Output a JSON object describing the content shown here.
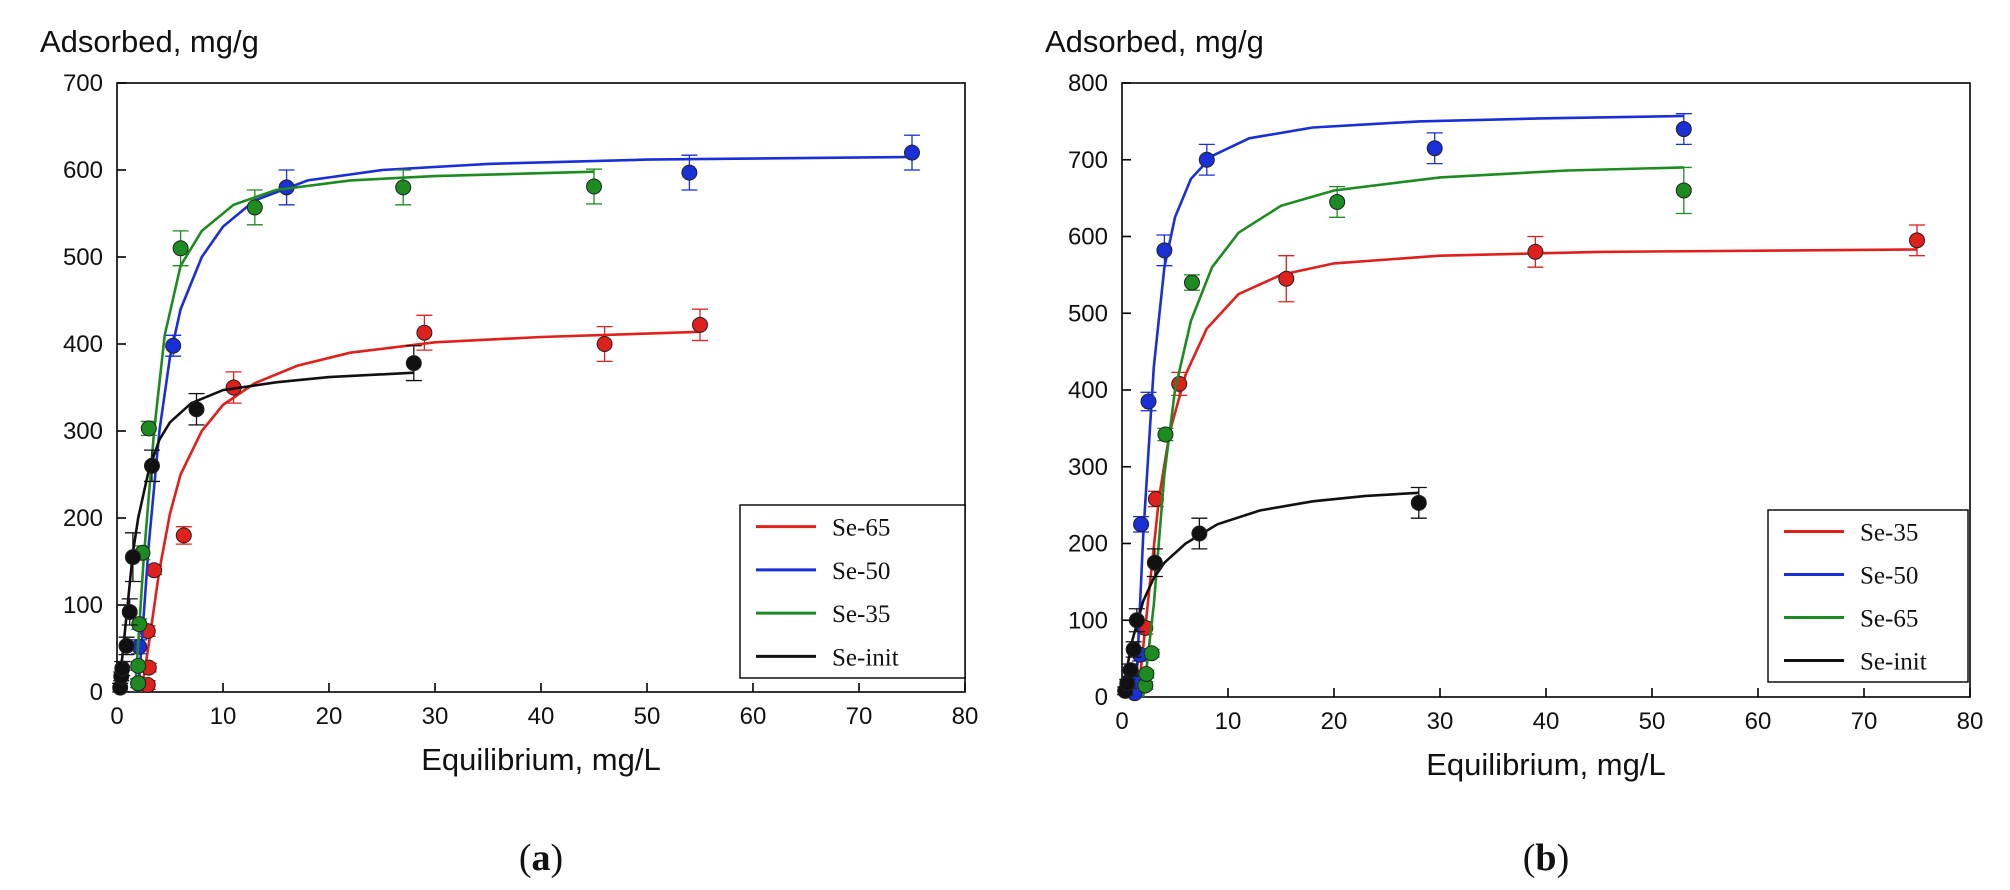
{
  "chart_data": [
    {
      "panel": "a",
      "caption": "(a)",
      "caption_letter": "a",
      "type": "scatter",
      "title": "",
      "ylabel": "Adsorbed, mg/g",
      "xlabel": "Equilibrium, mg/L",
      "xlim": [
        0,
        80
      ],
      "ylim": [
        0,
        700
      ],
      "xticks": [
        0,
        10,
        20,
        30,
        40,
        50,
        60,
        70,
        80
      ],
      "yticks": [
        0,
        100,
        200,
        300,
        400,
        500,
        600,
        700
      ],
      "grid": false,
      "legend": "bottom-right",
      "series": [
        {
          "name": "Se-65",
          "color": "#e0201c",
          "points": [
            [
              2.9,
              8
            ],
            [
              3.0,
              28
            ],
            [
              2.9,
              70
            ],
            [
              3.5,
              140
            ],
            [
              6.3,
              180
            ],
            [
              11.0,
              350
            ],
            [
              29.0,
              413
            ],
            [
              46.0,
              400
            ],
            [
              55.0,
              422
            ]
          ],
          "errors": [
            5,
            5,
            6,
            5,
            10,
            18,
            20,
            20,
            18
          ],
          "curve": [
            [
              2.3,
              0
            ],
            [
              3.0,
              55
            ],
            [
              4.0,
              140
            ],
            [
              5.0,
              205
            ],
            [
              6.0,
              250
            ],
            [
              8.0,
              300
            ],
            [
              10.0,
              330
            ],
            [
              13.0,
              355
            ],
            [
              17.0,
              375
            ],
            [
              22.0,
              390
            ],
            [
              30.0,
              402
            ],
            [
              40.0,
              408
            ],
            [
              55.0,
              414
            ]
          ]
        },
        {
          "name": "Se-50",
          "color": "#1a2fd6",
          "points": [
            [
              2.0,
              10
            ],
            [
              2.1,
              52
            ],
            [
              5.3,
              398
            ],
            [
              16.0,
              580
            ],
            [
              54.0,
              597
            ],
            [
              75.0,
              620
            ]
          ],
          "errors": [
            5,
            8,
            12,
            20,
            20,
            20
          ],
          "curve": [
            [
              2.0,
              0
            ],
            [
              3.0,
              170
            ],
            [
              4.0,
              300
            ],
            [
              5.0,
              385
            ],
            [
              6.0,
              440
            ],
            [
              8.0,
              500
            ],
            [
              10.0,
              535
            ],
            [
              13.0,
              565
            ],
            [
              18.0,
              588
            ],
            [
              25.0,
              600
            ],
            [
              35.0,
              607
            ],
            [
              50.0,
              612
            ],
            [
              75.0,
              615
            ]
          ]
        },
        {
          "name": "Se-35",
          "color": "#1e8a22",
          "points": [
            [
              2.0,
              10
            ],
            [
              2.0,
              30
            ],
            [
              2.1,
              78
            ],
            [
              2.4,
              160
            ],
            [
              3.0,
              303
            ],
            [
              6.0,
              510
            ],
            [
              13.0,
              557
            ],
            [
              27.0,
              580
            ],
            [
              45.0,
              581
            ]
          ],
          "errors": [
            5,
            5,
            6,
            8,
            8,
            20,
            20,
            20,
            20
          ],
          "curve": [
            [
              1.7,
              0
            ],
            [
              2.5,
              150
            ],
            [
              3.5,
              300
            ],
            [
              4.5,
              410
            ],
            [
              6.0,
              490
            ],
            [
              8.0,
              530
            ],
            [
              11.0,
              560
            ],
            [
              15.0,
              577
            ],
            [
              22.0,
              588
            ],
            [
              30.0,
              593
            ],
            [
              45.0,
              598
            ]
          ]
        },
        {
          "name": "Se-init",
          "color": "#111111",
          "points": [
            [
              0.3,
              5
            ],
            [
              0.4,
              18
            ],
            [
              0.5,
              27
            ],
            [
              0.9,
              53
            ],
            [
              1.2,
              92
            ],
            [
              1.5,
              155
            ],
            [
              3.3,
              260
            ],
            [
              7.5,
              325
            ],
            [
              28.0,
              378
            ]
          ],
          "errors": [
            5,
            5,
            8,
            10,
            15,
            28,
            18,
            18,
            20
          ],
          "curve": [
            [
              0.0,
              0
            ],
            [
              0.5,
              40
            ],
            [
              1.0,
              100
            ],
            [
              1.5,
              160
            ],
            [
              2.0,
              200
            ],
            [
              3.0,
              255
            ],
            [
              4.0,
              290
            ],
            [
              5.0,
              310
            ],
            [
              7.0,
              332
            ],
            [
              10.0,
              347
            ],
            [
              15.0,
              356
            ],
            [
              20.0,
              362
            ],
            [
              28.0,
              367
            ]
          ]
        }
      ]
    },
    {
      "panel": "b",
      "caption": "(b)",
      "caption_letter": "b",
      "type": "scatter",
      "title": "",
      "ylabel": "Adsorbed, mg/g",
      "xlabel": "Equilibrium, mg/L",
      "xlim": [
        0,
        80
      ],
      "ylim": [
        0,
        800
      ],
      "xticks": [
        0,
        10,
        20,
        30,
        40,
        50,
        60,
        70,
        80
      ],
      "yticks": [
        0,
        100,
        200,
        300,
        400,
        500,
        600,
        700,
        800
      ],
      "grid": false,
      "legend": "bottom-right",
      "series": [
        {
          "name": "Se-35",
          "color": "#e0201c",
          "points": [
            [
              1.5,
              25
            ],
            [
              2.2,
              90
            ],
            [
              3.2,
              258
            ],
            [
              5.4,
              408
            ],
            [
              15.5,
              545
            ],
            [
              39.0,
              580
            ],
            [
              75.0,
              595
            ]
          ],
          "errors": [
            5,
            8,
            10,
            15,
            30,
            20,
            20
          ],
          "curve": [
            [
              1.5,
              0
            ],
            [
              2.5,
              130
            ],
            [
              3.5,
              260
            ],
            [
              4.5,
              345
            ],
            [
              6.0,
              420
            ],
            [
              8.0,
              480
            ],
            [
              11.0,
              525
            ],
            [
              15.0,
              550
            ],
            [
              20.0,
              565
            ],
            [
              30.0,
              575
            ],
            [
              45.0,
              580
            ],
            [
              75.0,
              583
            ]
          ]
        },
        {
          "name": "Se-50",
          "color": "#1a2fd6",
          "points": [
            [
              1.2,
              5
            ],
            [
              1.4,
              20
            ],
            [
              1.7,
              55
            ],
            [
              1.8,
              225
            ],
            [
              2.5,
              385
            ],
            [
              4.0,
              582
            ],
            [
              8.0,
              700
            ],
            [
              29.5,
              715
            ],
            [
              53.0,
              740
            ]
          ],
          "errors": [
            5,
            5,
            8,
            10,
            12,
            20,
            20,
            20,
            20
          ],
          "curve": [
            [
              1.3,
              0
            ],
            [
              2.0,
              210
            ],
            [
              3.0,
              430
            ],
            [
              4.0,
              560
            ],
            [
              5.0,
              625
            ],
            [
              6.5,
              675
            ],
            [
              8.5,
              705
            ],
            [
              12.0,
              728
            ],
            [
              18.0,
              742
            ],
            [
              28.0,
              750
            ],
            [
              40.0,
              754
            ],
            [
              53.0,
              757
            ]
          ]
        },
        {
          "name": "Se-65",
          "color": "#1e8a22",
          "points": [
            [
              2.2,
              15
            ],
            [
              2.3,
              30
            ],
            [
              2.8,
              57
            ],
            [
              4.1,
              342
            ],
            [
              6.6,
              540
            ],
            [
              20.3,
              645
            ],
            [
              53.0,
              660
            ]
          ],
          "errors": [
            5,
            5,
            5,
            8,
            10,
            20,
            30
          ],
          "curve": [
            [
              2.0,
              0
            ],
            [
              3.0,
              120
            ],
            [
              4.0,
              290
            ],
            [
              5.0,
              400
            ],
            [
              6.5,
              490
            ],
            [
              8.5,
              560
            ],
            [
              11.0,
              605
            ],
            [
              15.0,
              640
            ],
            [
              20.0,
              660
            ],
            [
              30.0,
              677
            ],
            [
              42.0,
              686
            ],
            [
              53.0,
              690
            ]
          ]
        },
        {
          "name": "Se-init",
          "color": "#111111",
          "points": [
            [
              0.3,
              8
            ],
            [
              0.5,
              18
            ],
            [
              0.8,
              35
            ],
            [
              1.1,
              62
            ],
            [
              1.4,
              100
            ],
            [
              3.1,
              175
            ],
            [
              7.3,
              213
            ],
            [
              28.0,
              253
            ]
          ],
          "errors": [
            5,
            5,
            8,
            10,
            15,
            18,
            20,
            20
          ],
          "curve": [
            [
              0.0,
              0
            ],
            [
              0.5,
              40
            ],
            [
              1.0,
              75
            ],
            [
              1.5,
              100
            ],
            [
              2.0,
              125
            ],
            [
              3.0,
              155
            ],
            [
              4.0,
              175
            ],
            [
              6.0,
              200
            ],
            [
              9.0,
              225
            ],
            [
              13.0,
              243
            ],
            [
              18.0,
              255
            ],
            [
              23.0,
              262
            ],
            [
              28.0,
              266
            ]
          ]
        }
      ]
    }
  ]
}
